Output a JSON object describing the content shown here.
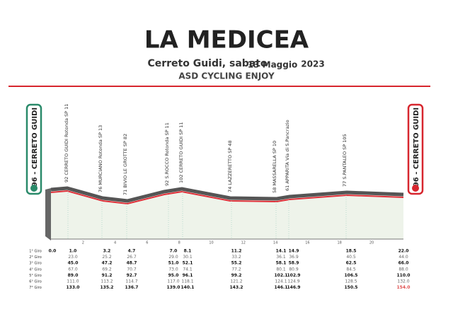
{
  "header": {
    "title": "LA MEDICEA",
    "subtitle": "Cerreto Guidi, sabato",
    "date": "13 Maggio",
    "year": "2023",
    "organizer": "ASD CYCLING ENJOY"
  },
  "start_label": "96 - CERRETO GUIDI",
  "finish_label": "96 - CERRETO GUIDI",
  "waypoints": [
    "92 CERRETO GUIDI Rotonda SP 11",
    "76 MURCIANO Rotonda SP 13",
    "71 BIVIO LE GROTTE SP 82",
    "92 S.ROCCO Rotonda SP 11",
    "102 CERRETO GUIDI SP 11",
    "74 LAZZERETTO SP 48",
    "58 MASSARELLA SP 10",
    "61 APPARITA Via di S.Pancrazio",
    "77 S.PANTALEO SP 105"
  ],
  "km_ticks": [
    "2",
    "4",
    "6",
    "8",
    "10",
    "12",
    "14",
    "16",
    "18",
    "20"
  ],
  "laps": [
    "1° Giro",
    "2° Giro",
    "3° Giro",
    "4° Giro",
    "5° Giro",
    "6° Giro",
    "7° Giro"
  ],
  "columns": [
    [
      "0.0"
    ],
    [
      "1.0",
      "23.0",
      "45.0",
      "67.0",
      "89.0",
      "111.0",
      "133.0"
    ],
    [
      "3.2",
      "25.2",
      "47.2",
      "69.2",
      "91.2",
      "113.2",
      "135.2"
    ],
    [
      "4.7",
      "26.7",
      "48.7",
      "70.7",
      "92.7",
      "114.7",
      "136.7"
    ],
    [
      "7.0",
      "29.0",
      "51.0",
      "73.0",
      "95.0",
      "117.0",
      "139.0"
    ],
    [
      "8.1",
      "30.1",
      "52.1",
      "74.1",
      "96.1",
      "118.1",
      "140.1"
    ],
    [
      "11.2",
      "33.2",
      "55.2",
      "77.2",
      "99.2",
      "121.2",
      "143.2"
    ],
    [
      "14.1",
      "36.1",
      "58.1",
      "80.1",
      "102.1",
      "124.1",
      "146.1"
    ],
    [
      "14.9",
      "36.9",
      "58.9",
      "80.9",
      "102.9",
      "124.9",
      "146.9"
    ],
    [
      "18.5",
      "40.5",
      "62.5",
      "84.5",
      "106.5",
      "128.5",
      "150.5"
    ],
    [
      "22.0",
      "44.0",
      "66.0",
      "88.0",
      "110.0",
      "132.0",
      "154.0"
    ]
  ]
}
